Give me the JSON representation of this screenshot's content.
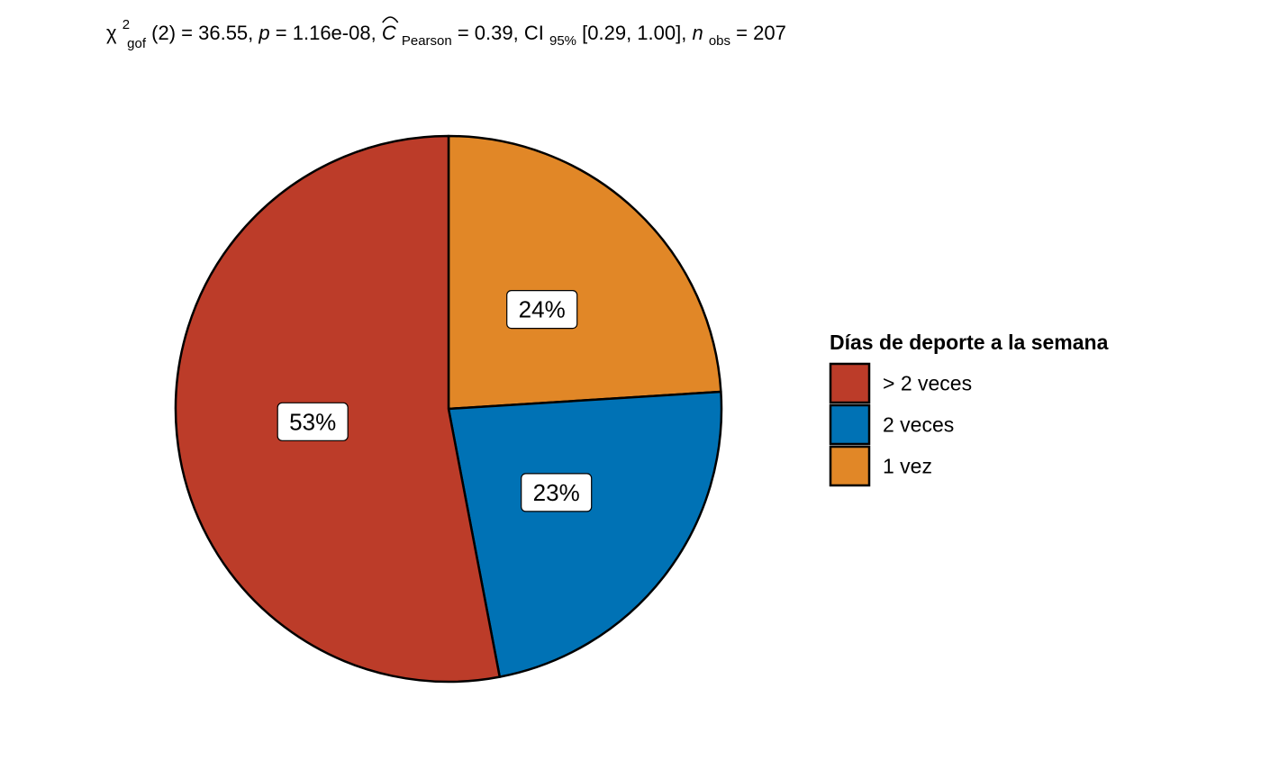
{
  "chart_data": {
    "type": "pie",
    "subtitle": {
      "chi": "χ",
      "chi_sup": "2",
      "chi_sub": "gof",
      "df": "(2)",
      "stat": " = 36.55, ",
      "p_symbol": "p",
      "p_value": " = 1.16e-08, ",
      "c_symbol": "C",
      "c_sub": "Pearson",
      "c_value": " = 0.39, CI",
      "ci_sub": "95%",
      "ci_value": " [0.29, 1.00], ",
      "n_symbol": "n",
      "n_sub": "obs",
      "n_value": " = 207"
    },
    "legend": {
      "title": "Días de deporte a la semana",
      "position": "right"
    },
    "slices": [
      {
        "name": "> 2 veces",
        "percent": 53,
        "label": "53%",
        "color": "#BC3C29"
      },
      {
        "name": "2 veces",
        "percent": 23,
        "label": "23%",
        "color": "#0072B5"
      },
      {
        "name": "1 vez",
        "percent": 24,
        "label": "24%",
        "color": "#E18727"
      }
    ],
    "slice_outline_color": "#000000"
  }
}
